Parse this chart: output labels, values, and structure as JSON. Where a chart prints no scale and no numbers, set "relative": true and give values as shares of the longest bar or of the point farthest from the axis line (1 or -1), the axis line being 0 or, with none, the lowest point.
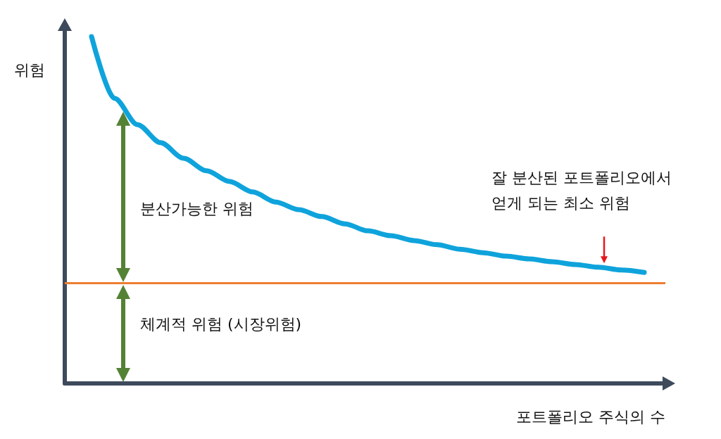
{
  "chart_data": {
    "type": "line",
    "relative": true,
    "xlabel": "포트폴리오 주식의 수",
    "ylabel": "위험",
    "categories": [
      null,
      null,
      null,
      null,
      null,
      null,
      null,
      null,
      null,
      null,
      null,
      null,
      null,
      null,
      null,
      null,
      null,
      null,
      null,
      null,
      null,
      null,
      null,
      null,
      null
    ],
    "series": [
      {
        "color": "#0fa3dc",
        "values": [
          1,
          0.822,
          0.746,
          0.694,
          0.649,
          0.613,
          0.582,
          0.552,
          0.523,
          0.501,
          0.481,
          0.46,
          0.44,
          0.426,
          0.412,
          0.4,
          0.387,
          0.377,
          0.367,
          0.359,
          0.351,
          0.343,
          0.335,
          0.327,
          0.32
        ]
      }
    ],
    "ref_lines": [
      {
        "axis": "y",
        "value": 0.288,
        "color": "#ee7d31"
      }
    ],
    "annotations": [
      "분산가능한 위험",
      "체계적 위험 (시장위험)",
      "잘 분산된 포트폴리오에서\n얻게 되는 최소 위험"
    ],
    "marker": "none",
    "grid": false
  }
}
